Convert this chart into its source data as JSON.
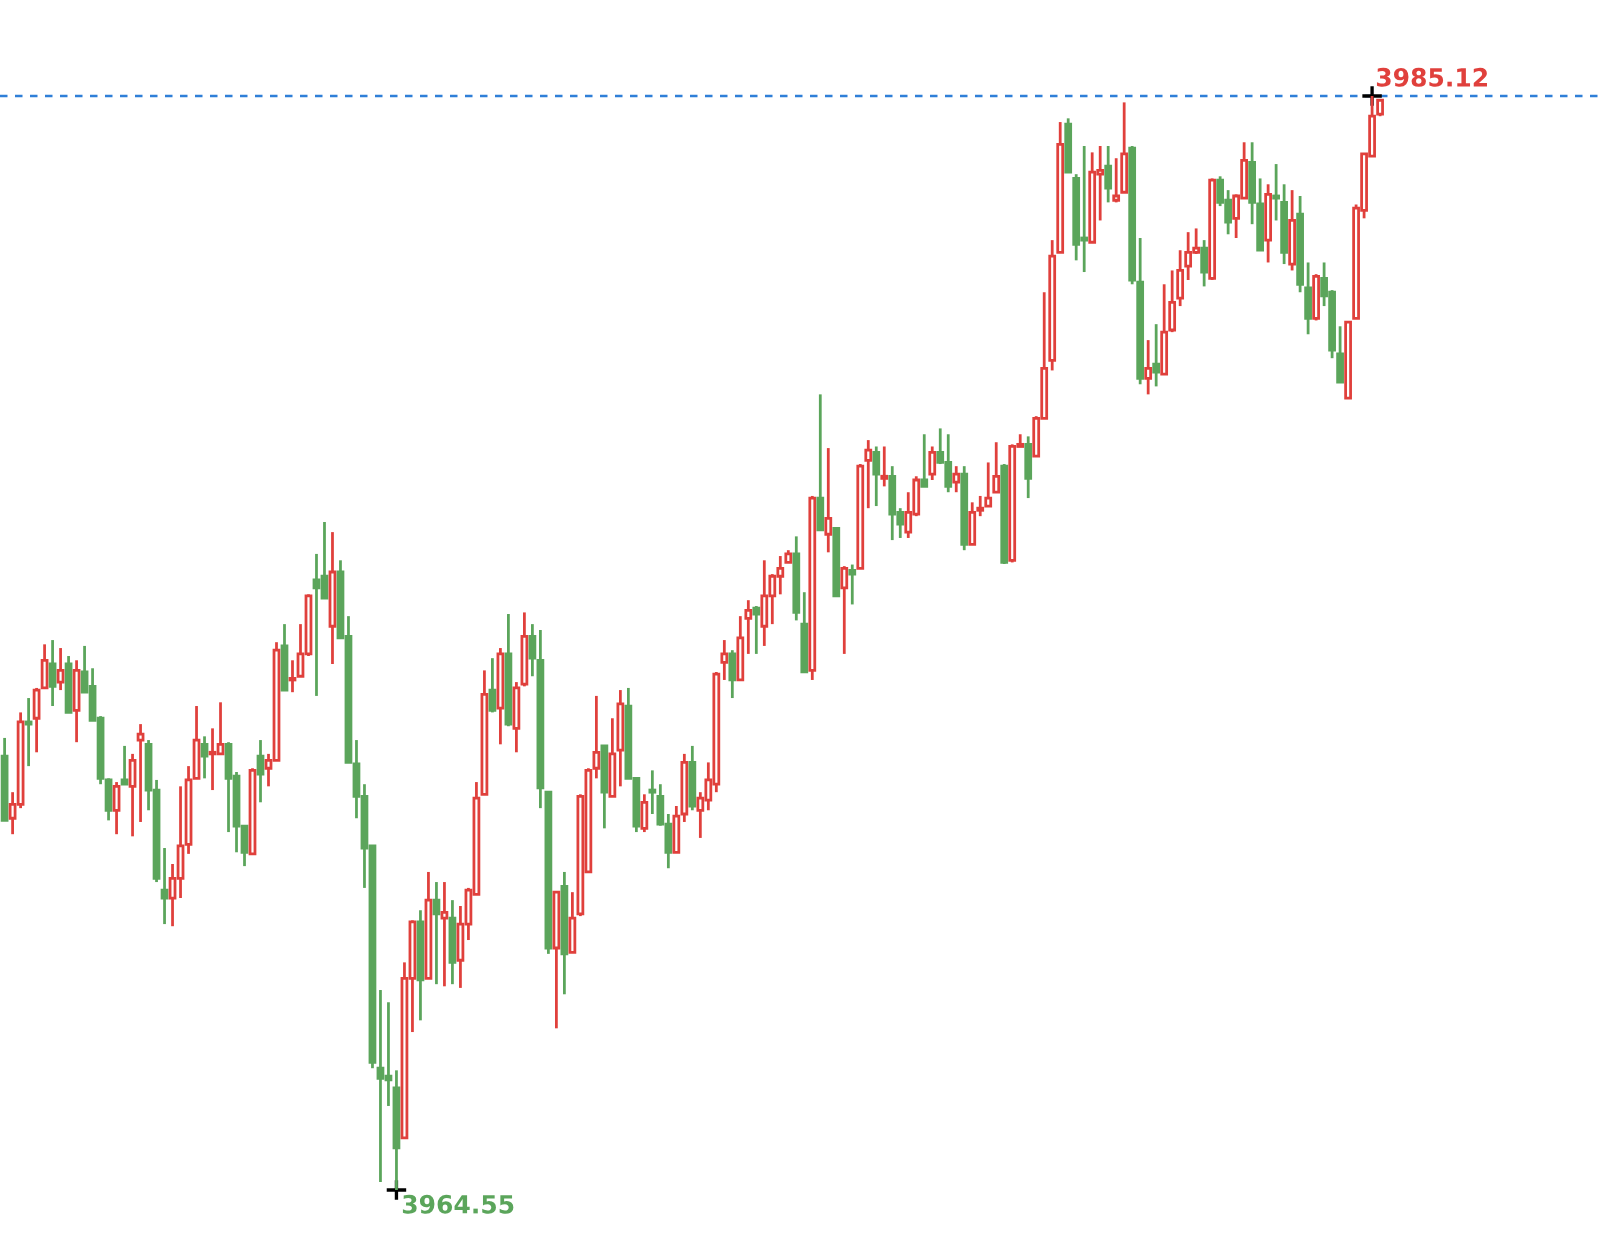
{
  "chart_data": {
    "type": "candlestick",
    "categories": [
      null,
      null,
      null,
      null,
      null,
      null,
      null,
      null,
      null,
      null,
      null,
      null,
      null,
      null,
      null,
      null,
      null,
      null,
      null,
      null,
      null,
      null,
      null,
      null,
      null,
      null,
      null,
      null,
      null,
      null,
      null,
      null,
      null,
      null,
      null,
      null,
      null,
      null,
      null,
      null,
      null,
      null,
      null,
      null,
      null,
      null,
      null,
      null,
      null,
      null,
      null,
      null,
      null,
      null,
      null,
      null,
      null,
      null,
      null,
      null,
      null,
      null,
      null,
      null,
      null,
      null,
      null,
      null,
      null,
      null,
      null,
      null,
      null,
      null,
      null,
      null,
      null,
      null,
      null,
      null,
      null,
      null,
      null,
      null,
      null,
      null,
      null,
      null,
      null,
      null,
      null,
      null,
      null,
      null,
      null,
      null,
      null,
      null,
      null,
      null,
      null,
      null,
      null,
      null,
      null,
      null,
      null,
      null,
      null,
      null,
      null,
      null,
      null,
      null,
      null,
      null,
      null,
      null,
      null,
      null,
      null,
      null,
      null,
      null,
      null,
      null,
      null,
      null,
      null,
      null,
      null,
      null,
      null,
      null,
      null,
      null,
      null,
      null,
      null,
      null,
      null,
      null,
      null,
      null,
      null,
      null,
      null,
      null,
      null,
      null,
      null,
      null,
      null,
      null,
      null,
      null,
      null,
      null,
      null,
      null,
      null,
      null,
      null,
      null,
      null,
      null,
      null,
      null,
      null,
      null,
      null,
      null,
      null
    ],
    "colors": [
      "#5ba55b",
      "#e0403c",
      "#e0403c",
      "#5ba55b",
      "#e0403c",
      "#e0403c",
      "#5ba55b",
      "#e0403c",
      "#5ba55b",
      "#e0403c",
      "#5ba55b",
      "#5ba55b",
      "#5ba55b",
      "#5ba55b",
      "#e0403c",
      "#5ba55b",
      "#e0403c",
      "#e0403c",
      "#5ba55b",
      "#5ba55b",
      "#5ba55b",
      "#e0403c",
      "#e0403c",
      "#e0403c",
      "#e0403c",
      "#5ba55b",
      "#e0403c",
      "#e0403c",
      "#5ba55b",
      "#5ba55b",
      "#5ba55b",
      "#e0403c",
      "#5ba55b",
      "#e0403c",
      "#e0403c",
      "#5ba55b",
      "#e0403c",
      "#e0403c",
      "#e0403c",
      "#5ba55b",
      "#5ba55b",
      "#e0403c",
      "#5ba55b",
      "#5ba55b",
      "#5ba55b",
      "#5ba55b",
      "#5ba55b",
      "#5ba55b",
      "#5ba55b",
      "#5ba55b",
      "#e0403c",
      "#e0403c",
      "#5ba55b",
      "#e0403c",
      "#5ba55b",
      "#e0403c",
      "#5ba55b",
      "#e0403c",
      "#e0403c",
      "#e0403c",
      "#e0403c",
      "#5ba55b",
      "#e0403c",
      "#5ba55b",
      "#e0403c",
      "#e0403c",
      "#5ba55b",
      "#5ba55b",
      "#5ba55b",
      "#e0403c",
      "#5ba55b",
      "#e0403c",
      "#e0403c",
      "#e0403c",
      "#e0403c",
      "#5ba55b",
      "#e0403c",
      "#e0403c",
      "#5ba55b",
      "#5ba55b",
      "#e0403c",
      "#5ba55b",
      "#5ba55b",
      "#5ba55b",
      "#e0403c",
      "#e0403c",
      "#5ba55b",
      "#e0403c",
      "#e0403c",
      "#e0403c",
      "#e0403c",
      "#5ba55b",
      "#e0403c",
      "#e0403c",
      "#5ba55b",
      "#e0403c",
      "#e0403c",
      "#e0403c",
      "#e0403c",
      "#5ba55b",
      "#5ba55b",
      "#e0403c",
      "#5ba55b",
      "#e0403c",
      "#5ba55b",
      "#e0403c",
      "#5ba55b",
      "#e0403c",
      "#e0403c",
      "#5ba55b",
      "#e0403c",
      "#5ba55b",
      "#5ba55b",
      "#e0403c",
      "#e0403c",
      "#5ba55b",
      "#e0403c",
      "#5ba55b",
      "#5ba55b",
      "#e0403c",
      "#5ba55b",
      "#e0403c",
      "#e0403c",
      "#e0403c",
      "#e0403c",
      "#5ba55b",
      "#e0403c",
      "#e0403c",
      "#5ba55b",
      "#e0403c",
      "#e0403c",
      "#e0403c",
      "#e0403c",
      "#5ba55b",
      "#5ba55b",
      "#5ba55b",
      "#e0403c",
      "#e0403c",
      "#5ba55b",
      "#e0403c",
      "#e0403c",
      "#5ba55b",
      "#5ba55b",
      "#e0403c",
      "#5ba55b",
      "#e0403c",
      "#e0403c",
      "#e0403c",
      "#e0403c",
      "#e0403c",
      "#5ba55b",
      "#e0403c",
      "#5ba55b",
      "#5ba55b",
      "#e0403c",
      "#e0403c",
      "#5ba55b",
      "#5ba55b",
      "#e0403c",
      "#5ba55b",
      "#5ba55b",
      "#e0403c",
      "#5ba55b",
      "#5ba55b",
      "#e0403c",
      "#5ba55b",
      "#5ba55b",
      "#5ba55b",
      "#e0403c",
      "#e0403c",
      "#e0403c",
      "#e0403c",
      "#e0403c"
    ],
    "ohlc": [
      [
        3972.71,
        3973.05,
        3971.5,
        3971.5
      ],
      [
        3971.54,
        3972.03,
        3971.24,
        3971.8
      ],
      [
        3971.8,
        3973.53,
        3971.73,
        3973.35
      ],
      [
        3973.35,
        3973.8,
        3972.52,
        3973.31
      ],
      [
        3973.42,
        3973.99,
        3972.78,
        3973.95
      ],
      [
        3973.99,
        3974.81,
        3973.99,
        3974.51
      ],
      [
        3974.44,
        3974.89,
        3973.65,
        3974.02
      ],
      [
        3974.1,
        3974.74,
        3973.95,
        3974.32
      ],
      [
        3974.44,
        3974.59,
        3973.53,
        3973.53
      ],
      [
        3973.57,
        3974.51,
        3972.97,
        3974.32
      ],
      [
        3974.29,
        3974.78,
        3973.91,
        3973.91
      ],
      [
        3974.02,
        3974.36,
        3973.38,
        3973.38
      ],
      [
        3973.42,
        3973.46,
        3972.18,
        3972.29
      ],
      [
        3972.26,
        3972.29,
        3971.5,
        3971.69
      ],
      [
        3971.69,
        3972.22,
        3971.24,
        3972.14
      ],
      [
        3972.26,
        3972.9,
        3972.18,
        3972.18
      ],
      [
        3972.14,
        3972.75,
        3971.2,
        3972.63
      ],
      [
        3973.01,
        3973.31,
        3971.47,
        3973.12
      ],
      [
        3972.93,
        3973.01,
        3971.69,
        3972.07
      ],
      [
        3972.07,
        3972.26,
        3970.34,
        3970.41
      ],
      [
        3970.19,
        3970.98,
        3969.55,
        3970.04
      ],
      [
        3970.04,
        3970.68,
        3969.51,
        3970.41
      ],
      [
        3970.41,
        3972.14,
        3970.04,
        3971.02
      ],
      [
        3971.05,
        3972.52,
        3970.87,
        3972.26
      ],
      [
        3972.29,
        3973.65,
        3972.29,
        3973.01
      ],
      [
        3972.93,
        3973.08,
        3972.29,
        3972.71
      ],
      [
        3972.75,
        3973.23,
        3972.07,
        3972.78
      ],
      [
        3972.75,
        3973.72,
        3972.75,
        3972.93
      ],
      [
        3972.93,
        3972.97,
        3971.28,
        3972.29
      ],
      [
        3972.33,
        3972.41,
        3970.9,
        3971.39
      ],
      [
        3971.39,
        3971.39,
        3970.64,
        3970.9
      ],
      [
        3970.87,
        3972.48,
        3970.87,
        3972.44
      ],
      [
        3972.71,
        3973.01,
        3971.84,
        3972.37
      ],
      [
        3972.48,
        3972.75,
        3972.14,
        3972.63
      ],
      [
        3972.63,
        3974.85,
        3972.63,
        3974.7
      ],
      [
        3974.78,
        3975.19,
        3973.95,
        3973.95
      ],
      [
        3974.14,
        3974.51,
        3973.91,
        3974.17
      ],
      [
        3974.21,
        3975.19,
        3974.21,
        3974.63
      ],
      [
        3974.63,
        3975.75,
        3974.59,
        3975.72
      ],
      [
        3976.02,
        3976.51,
        3973.84,
        3975.87
      ],
      [
        3976.09,
        3977.11,
        3975.68,
        3975.68
      ],
      [
        3975.15,
        3976.92,
        3974.44,
        3976.17
      ],
      [
        3976.17,
        3976.39,
        3974.93,
        3974.93
      ],
      [
        3974.96,
        3975.34,
        3972.59,
        3972.59
      ],
      [
        3972.56,
        3973.01,
        3971.54,
        3971.95
      ],
      [
        3971.95,
        3972.18,
        3970.23,
        3970.98
      ],
      [
        3971.02,
        3971.02,
        3966.84,
        3966.95
      ],
      [
        3966.84,
        3968.31,
        3964.7,
        3966.65
      ],
      [
        3966.69,
        3968.08,
        3966.13,
        3966.62
      ],
      [
        3966.47,
        3966.8,
        3964.55,
        3965.34
      ],
      [
        3965.53,
        3968.83,
        3965.53,
        3968.53
      ],
      [
        3968.53,
        3969.62,
        3967.52,
        3969.59
      ],
      [
        3969.59,
        3969.81,
        3967.74,
        3968.5
      ],
      [
        3968.53,
        3970.53,
        3968.53,
        3970.0
      ],
      [
        3970.0,
        3970.34,
        3968.42,
        3969.74
      ],
      [
        3969.66,
        3970.34,
        3968.38,
        3969.77
      ],
      [
        3969.66,
        3970.0,
        3968.42,
        3968.83
      ],
      [
        3968.87,
        3969.89,
        3968.35,
        3969.55
      ],
      [
        3969.55,
        3970.23,
        3969.25,
        3970.19
      ],
      [
        3970.11,
        3972.22,
        3970.11,
        3971.92
      ],
      [
        3971.99,
        3974.32,
        3971.99,
        3973.87
      ],
      [
        3973.95,
        3974.55,
        3973.53,
        3973.57
      ],
      [
        3973.61,
        3974.74,
        3972.93,
        3974.63
      ],
      [
        3974.63,
        3975.38,
        3973.27,
        3973.31
      ],
      [
        3973.23,
        3974.1,
        3972.78,
        3973.99
      ],
      [
        3974.06,
        3975.41,
        3974.02,
        3974.96
      ],
      [
        3974.96,
        3975.19,
        3974.21,
        3974.55
      ],
      [
        3974.51,
        3975.08,
        3971.73,
        3972.11
      ],
      [
        3972.03,
        3972.03,
        3968.99,
        3969.1
      ],
      [
        3969.1,
        3970.15,
        3967.59,
        3970.15
      ],
      [
        3970.26,
        3970.53,
        3968.23,
        3968.99
      ],
      [
        3969.02,
        3970.15,
        3969.02,
        3969.66
      ],
      [
        3969.74,
        3971.99,
        3969.7,
        3971.95
      ],
      [
        3970.53,
        3972.48,
        3970.53,
        3972.44
      ],
      [
        3972.48,
        3973.84,
        3972.29,
        3972.78
      ],
      [
        3972.9,
        3972.9,
        3971.35,
        3972.03
      ],
      [
        3971.95,
        3973.42,
        3971.95,
        3972.75
      ],
      [
        3972.82,
        3973.95,
        3972.14,
        3973.69
      ],
      [
        3973.65,
        3973.99,
        3972.29,
        3972.29
      ],
      [
        3972.29,
        3972.29,
        3971.28,
        3971.39
      ],
      [
        3971.35,
        3971.99,
        3971.28,
        3971.84
      ],
      [
        3972.07,
        3972.44,
        3971.62,
        3972.03
      ],
      [
        3971.95,
        3972.18,
        3971.4,
        3971.43
      ],
      [
        3971.43,
        3971.62,
        3970.6,
        3970.9
      ],
      [
        3970.9,
        3971.77,
        3970.9,
        3971.58
      ],
      [
        3971.62,
        3972.75,
        3971.47,
        3972.59
      ],
      [
        3972.59,
        3972.9,
        3971.69,
        3971.77
      ],
      [
        3971.69,
        3972.03,
        3971.17,
        3971.92
      ],
      [
        3971.88,
        3972.59,
        3971.69,
        3972.26
      ],
      [
        3972.18,
        3974.29,
        3972.03,
        3974.25
      ],
      [
        3974.47,
        3974.89,
        3974.14,
        3974.63
      ],
      [
        3974.63,
        3974.7,
        3973.8,
        3974.14
      ],
      [
        3974.14,
        3975.34,
        3974.14,
        3974.93
      ],
      [
        3975.3,
        3975.64,
        3974.63,
        3975.45
      ],
      [
        3975.49,
        3975.53,
        3974.63,
        3975.38
      ],
      [
        3975.15,
        3976.39,
        3974.78,
        3975.72
      ],
      [
        3975.72,
        3976.13,
        3975.19,
        3976.09
      ],
      [
        3976.09,
        3976.47,
        3975.75,
        3976.24
      ],
      [
        3976.35,
        3976.58,
        3976.35,
        3976.51
      ],
      [
        3976.51,
        3976.84,
        3975.26,
        3975.41
      ],
      [
        3975.19,
        3975.79,
        3974.29,
        3974.29
      ],
      [
        3974.32,
        3977.6,
        3974.14,
        3977.56
      ],
      [
        3977.56,
        3979.51,
        3976.96,
        3976.96
      ],
      [
        3976.88,
        3978.5,
        3976.54,
        3977.18
      ],
      [
        3976.99,
        3976.99,
        3975.72,
        3975.72
      ],
      [
        3975.87,
        3976.28,
        3974.63,
        3976.24
      ],
      [
        3976.2,
        3976.31,
        3975.56,
        3976.13
      ],
      [
        3976.24,
        3978.2,
        3976.24,
        3978.16
      ],
      [
        3978.27,
        3978.65,
        3977.37,
        3978.46
      ],
      [
        3978.42,
        3978.53,
        3977.41,
        3978.01
      ],
      [
        3977.93,
        3978.53,
        3977.78,
        3977.97
      ],
      [
        3977.97,
        3978.16,
        3976.77,
        3977.26
      ],
      [
        3977.29,
        3977.37,
        3976.81,
        3977.07
      ],
      [
        3976.92,
        3977.67,
        3976.81,
        3977.29
      ],
      [
        3977.26,
        3977.97,
        3977.22,
        3977.9
      ],
      [
        3977.9,
        3978.76,
        3977.78,
        3977.78
      ],
      [
        3978.01,
        3978.53,
        3977.9,
        3978.42
      ],
      [
        3978.42,
        3978.87,
        3978.2,
        3978.23
      ],
      [
        3978.23,
        3978.76,
        3977.67,
        3977.78
      ],
      [
        3977.86,
        3978.16,
        3977.67,
        3978.01
      ],
      [
        3978.01,
        3978.16,
        3976.58,
        3976.69
      ],
      [
        3976.69,
        3977.48,
        3976.69,
        3977.29
      ],
      [
        3977.33,
        3977.6,
        3977.22,
        3977.37
      ],
      [
        3977.41,
        3978.23,
        3977.41,
        3977.56
      ],
      [
        3977.67,
        3978.61,
        3977.67,
        3977.97
      ],
      [
        3978.16,
        3978.2,
        3976.32,
        3976.35
      ],
      [
        3976.39,
        3978.57,
        3976.35,
        3978.53
      ],
      [
        3978.53,
        3978.76,
        3978.53,
        3978.57
      ],
      [
        3978.57,
        3978.72,
        3977.56,
        3977.93
      ],
      [
        3978.35,
        3979.1,
        3978.35,
        3979.06
      ],
      [
        3979.06,
        3981.43,
        3979.06,
        3980.0
      ],
      [
        3980.15,
        3982.41,
        3979.96,
        3982.11
      ],
      [
        3982.18,
        3984.63,
        3982.18,
        3984.21
      ],
      [
        3984.59,
        3984.7,
        3983.69,
        3983.69
      ],
      [
        3983.57,
        3983.65,
        3982.03,
        3982.33
      ],
      [
        3982.45,
        3984.18,
        3981.81,
        3982.41
      ],
      [
        3982.37,
        3984.06,
        3982.37,
        3983.69
      ],
      [
        3983.65,
        3984.18,
        3982.78,
        3983.72
      ],
      [
        3983.8,
        3984.18,
        3983.12,
        3983.39
      ],
      [
        3983.16,
        3983.95,
        3983.12,
        3983.24
      ],
      [
        3983.31,
        3985.0,
        3983.31,
        3984.03
      ],
      [
        3984.14,
        3984.18,
        3981.58,
        3981.66
      ],
      [
        3981.62,
        3982.45,
        3979.7,
        3979.81
      ],
      [
        3979.81,
        3980.53,
        3979.51,
        3980.0
      ],
      [
        3980.08,
        3980.83,
        3979.66,
        3979.93
      ],
      [
        3979.89,
        3981.58,
        3979.89,
        3980.68
      ],
      [
        3980.72,
        3981.84,
        3980.68,
        3981.24
      ],
      [
        3981.32,
        3982.22,
        3981.17,
        3981.84
      ],
      [
        3981.92,
        3982.56,
        3981.66,
        3982.18
      ],
      [
        3982.18,
        3982.63,
        3982.15,
        3982.26
      ],
      [
        3982.26,
        3982.41,
        3981.54,
        3981.81
      ],
      [
        3981.69,
        3983.57,
        3981.66,
        3983.54
      ],
      [
        3983.54,
        3983.61,
        3983.05,
        3983.12
      ],
      [
        3983.16,
        3983.35,
        3982.52,
        3982.75
      ],
      [
        3982.82,
        3983.27,
        3982.45,
        3983.24
      ],
      [
        3983.2,
        3984.25,
        3983.2,
        3983.91
      ],
      [
        3983.87,
        3984.25,
        3982.71,
        3983.12
      ],
      [
        3983.09,
        3983.57,
        3982.22,
        3982.22
      ],
      [
        3982.41,
        3983.46,
        3981.99,
        3983.27
      ],
      [
        3983.24,
        3983.84,
        3982.78,
        3983.2
      ],
      [
        3983.12,
        3983.46,
        3981.96,
        3982.18
      ],
      [
        3981.96,
        3983.35,
        3981.84,
        3982.78
      ],
      [
        3982.9,
        3983.24,
        3981.43,
        3981.58
      ],
      [
        3981.51,
        3981.99,
        3980.64,
        3980.94
      ],
      [
        3980.94,
        3981.77,
        3980.9,
        3981.73
      ],
      [
        3981.69,
        3981.99,
        3981.17,
        3981.36
      ],
      [
        3981.43,
        3981.47,
        3980.19,
        3980.34
      ],
      [
        3980.27,
        3980.79,
        3979.74,
        3979.74
      ],
      [
        3979.44,
        3980.87,
        3979.44,
        3980.87
      ],
      [
        3980.94,
        3983.08,
        3980.94,
        3983.01
      ],
      [
        3982.97,
        3984.03,
        3982.82,
        3984.03
      ],
      [
        3983.99,
        3985.12,
        3983.99,
        3984.74
      ],
      [
        3984.78,
        3985.04,
        3984.74,
        3985.04
      ]
    ],
    "ref_lines": [
      {
        "axis": "y",
        "value": 3985.12,
        "label": "3985.12",
        "color": "#2f7fd8",
        "line_style": "dashed"
      }
    ],
    "annotations": [
      "3964.55"
    ]
  }
}
